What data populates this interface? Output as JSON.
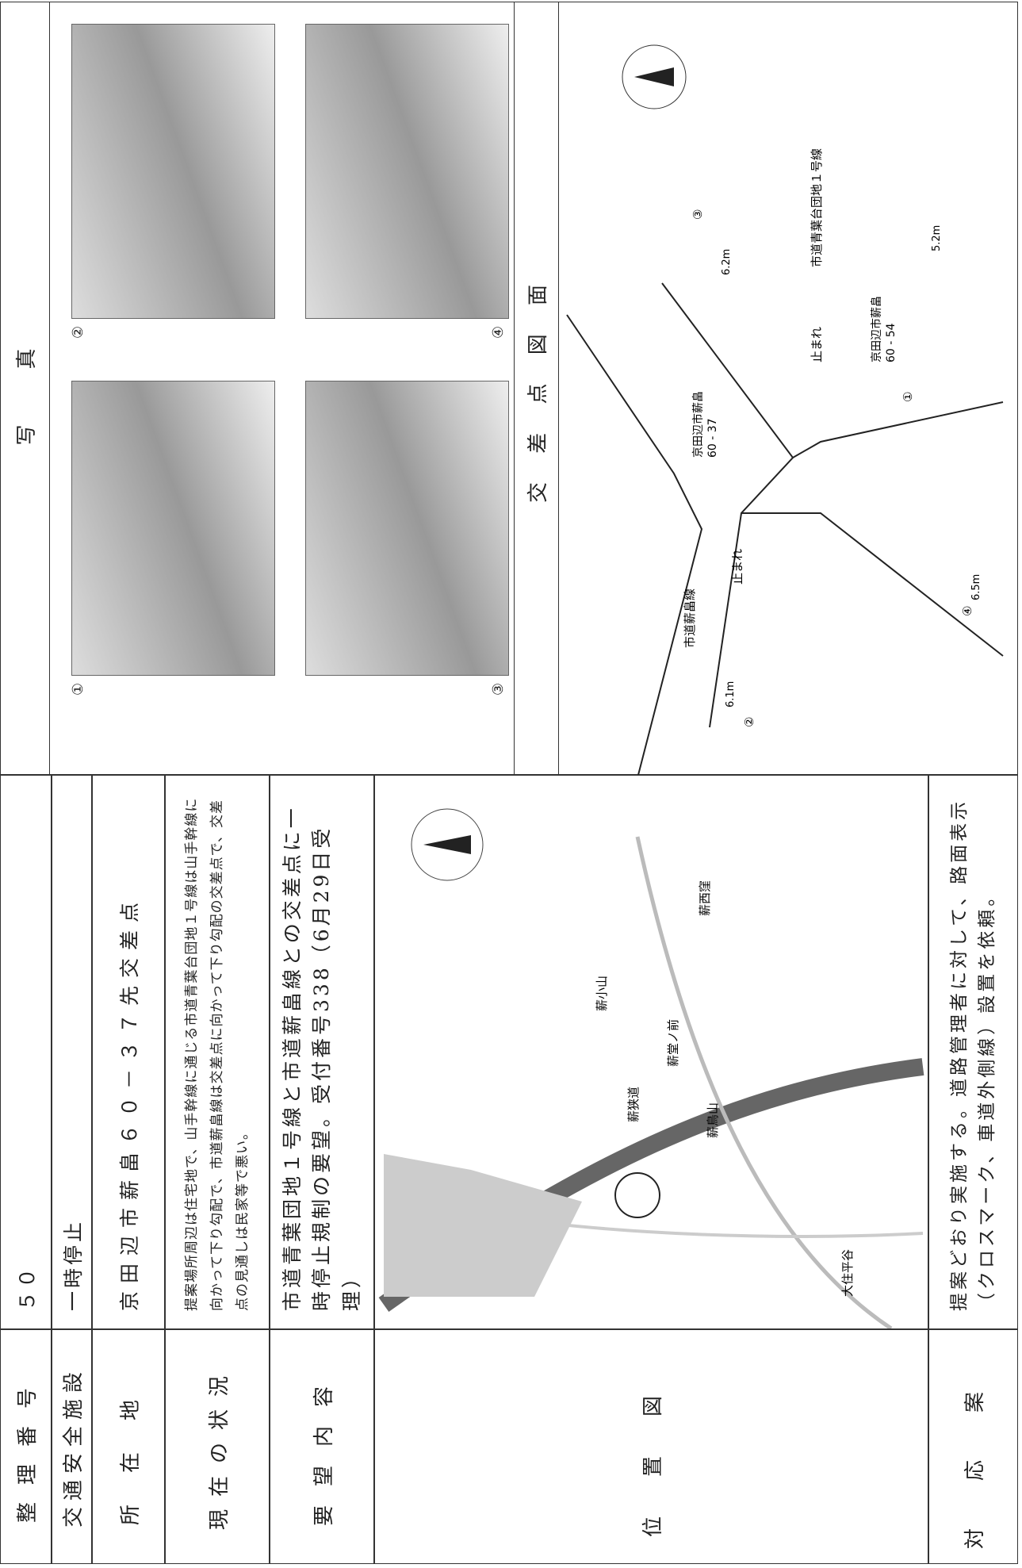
{
  "table": {
    "rows": [
      [
        "整理番号",
        "５０"
      ],
      [
        "交通安全施設",
        "一時停止"
      ],
      [
        "所在地",
        "京田辺市薪畠６０－３７先交差点"
      ],
      [
        "現在の状況",
        "提案場所周辺は住宅地で、山手幹線に通じる市道青葉台団地１号線は山手幹線に向かって下り勾配で、市道薪畠線は交差点に向かって下り勾配の交差点で、交差点の見通しは民家等で悪い。"
      ],
      [
        "要望内容",
        "市道青葉団地１号線と市道薪畠線との交差点に一時停止規制の要望。受付番号338（6月29日受理）"
      ],
      [
        "位置図",
        ""
      ],
      [
        "対応案",
        "提案どおり実施する。道路管理者に対して、路面表示（クロスマーク、車道外側線）設置を依頼。"
      ]
    ]
  },
  "photos": {
    "title": "写　真",
    "labels": [
      "①",
      "②",
      "③",
      "④"
    ]
  },
  "map": {
    "labels": [
      "薪小山",
      "薪西窪",
      "大住平谷",
      "薪鳥山",
      "薪狭道",
      "薪堂ノ前"
    ]
  },
  "diagram": {
    "title": "交 差 点 図 面",
    "signs": [
      {
        "name": "京田辺市薪畠",
        "code": "60 - 37"
      },
      {
        "name": "京田辺市薪畠",
        "code": "60 - 54"
      }
    ],
    "widths": [
      "6.1m",
      "6.2m",
      "5.2m",
      "6.5m"
    ],
    "roads": [
      "市道薪畠線",
      "市道青葉台団地１号線"
    ],
    "marking": "止まれ",
    "points": [
      "①",
      "②",
      "③",
      "④"
    ]
  }
}
